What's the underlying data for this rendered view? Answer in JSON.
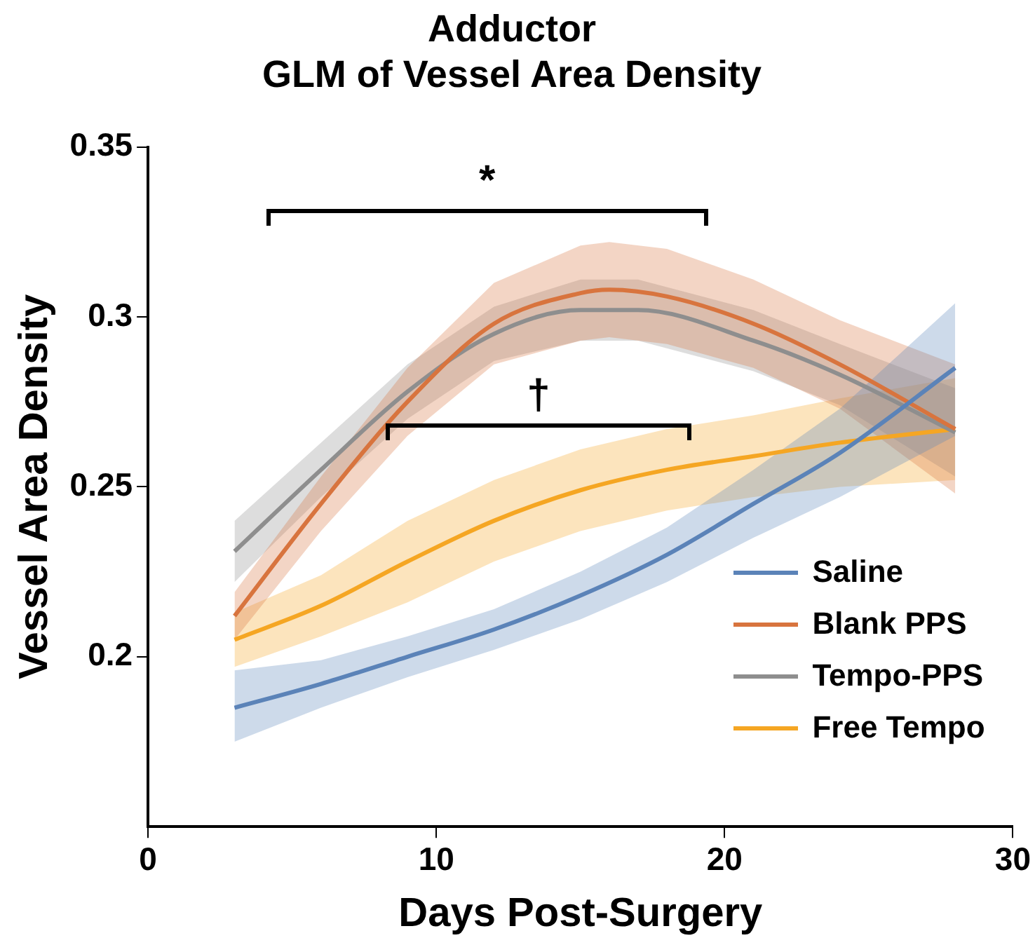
{
  "chart_data": {
    "type": "line",
    "title": "Adductor",
    "subtitle": "GLM of Vessel Area Density",
    "xlabel": "Days Post-Surgery",
    "ylabel": "Vessel Area Density",
    "xlim": [
      0,
      30
    ],
    "xticks": [
      0,
      10,
      20,
      30
    ],
    "ylim": [
      0.15,
      0.35
    ],
    "yticks": [
      0.2,
      0.25,
      0.3,
      0.35
    ],
    "grid": false,
    "legend": "bottom right",
    "marker": "none",
    "line_style": "solid",
    "series": [
      {
        "name": "Saline",
        "color": "#5b83b8",
        "x": [
          3,
          6,
          9,
          12,
          15,
          18,
          21,
          24,
          28
        ],
        "values": [
          0.185,
          0.192,
          0.2,
          0.208,
          0.218,
          0.23,
          0.245,
          0.26,
          0.285
        ],
        "lower": [
          0.175,
          0.185,
          0.194,
          0.202,
          0.211,
          0.222,
          0.235,
          0.247,
          0.265
        ],
        "upper": [
          0.196,
          0.199,
          0.206,
          0.214,
          0.225,
          0.238,
          0.255,
          0.273,
          0.304
        ]
      },
      {
        "name": "Blank PPS",
        "color": "#d8743e",
        "x": [
          3,
          6,
          9,
          12,
          15,
          16,
          18,
          21,
          24,
          28
        ],
        "values": [
          0.212,
          0.245,
          0.275,
          0.298,
          0.307,
          0.308,
          0.306,
          0.298,
          0.286,
          0.267
        ],
        "lower": [
          0.205,
          0.237,
          0.265,
          0.286,
          0.293,
          0.294,
          0.292,
          0.285,
          0.273,
          0.248
        ],
        "upper": [
          0.219,
          0.253,
          0.285,
          0.31,
          0.321,
          0.322,
          0.32,
          0.311,
          0.299,
          0.286
        ]
      },
      {
        "name": "Tempo-PPS",
        "color": "#8e8e8e",
        "x": [
          3,
          6,
          9,
          12,
          15,
          17,
          21,
          24,
          28
        ],
        "values": [
          0.231,
          0.255,
          0.278,
          0.295,
          0.302,
          0.302,
          0.293,
          0.283,
          0.266
        ],
        "lower": [
          0.222,
          0.247,
          0.27,
          0.287,
          0.293,
          0.293,
          0.284,
          0.274,
          0.253
        ],
        "upper": [
          0.24,
          0.263,
          0.286,
          0.303,
          0.311,
          0.311,
          0.302,
          0.292,
          0.279
        ]
      },
      {
        "name": "Free Tempo",
        "color": "#f5a623",
        "x": [
          3,
          6,
          9,
          12,
          15,
          18,
          21,
          24,
          28
        ],
        "values": [
          0.205,
          0.215,
          0.228,
          0.24,
          0.249,
          0.255,
          0.259,
          0.263,
          0.267
        ],
        "lower": [
          0.197,
          0.206,
          0.216,
          0.228,
          0.237,
          0.243,
          0.247,
          0.25,
          0.252
        ],
        "upper": [
          0.213,
          0.224,
          0.24,
          0.252,
          0.261,
          0.267,
          0.271,
          0.276,
          0.282
        ]
      }
    ],
    "annotations": [
      "*",
      "†"
    ]
  }
}
